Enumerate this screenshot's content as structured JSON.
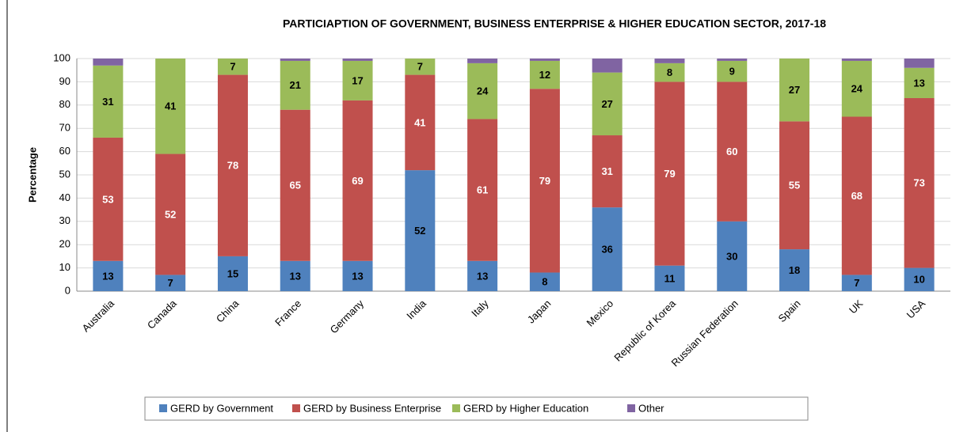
{
  "chart_data": {
    "type": "stacked_bar",
    "title": "PARTICIAPTION OF GOVERNMENT, BUSINESS ENTERPRISE & HIGHER EDUCATION SECTOR, 2017-18",
    "y_label": "Percentage",
    "categories": [
      "Australia",
      "Canada",
      "China",
      "France",
      "Germany",
      "India",
      "Italy",
      "Japan",
      "Mexico",
      "Republic of Korea",
      "Russian Federation",
      "Spain",
      "UK",
      "USA"
    ],
    "series": [
      {
        "name": "GERD by Government",
        "color": "#4f81bd",
        "show_labels": true,
        "values": [
          13,
          7,
          15,
          13,
          13,
          52,
          13,
          8,
          36,
          11,
          30,
          18,
          7,
          10
        ]
      },
      {
        "name": "GERD by Business Enterprise",
        "color": "#c0504d",
        "show_labels": true,
        "values": [
          53,
          52,
          78,
          65,
          69,
          41,
          61,
          79,
          31,
          79,
          60,
          55,
          68,
          73
        ]
      },
      {
        "name": "GERD by Higher Education",
        "color": "#9bbb59",
        "show_labels": true,
        "values": [
          31,
          41,
          7,
          21,
          17,
          7,
          24,
          12,
          27,
          8,
          9,
          27,
          24,
          13
        ]
      },
      {
        "name": "Other",
        "color": "#8064a2",
        "show_labels": false,
        "values": [
          3,
          0,
          0,
          1,
          1,
          0,
          2,
          1,
          6,
          2,
          1,
          0,
          1,
          4
        ]
      }
    ],
    "ylim": [
      0,
      100
    ],
    "yticks": [
      0,
      10,
      20,
      30,
      40,
      50,
      60,
      70,
      80,
      90,
      100
    ],
    "grid": true,
    "legend": "bottom"
  }
}
